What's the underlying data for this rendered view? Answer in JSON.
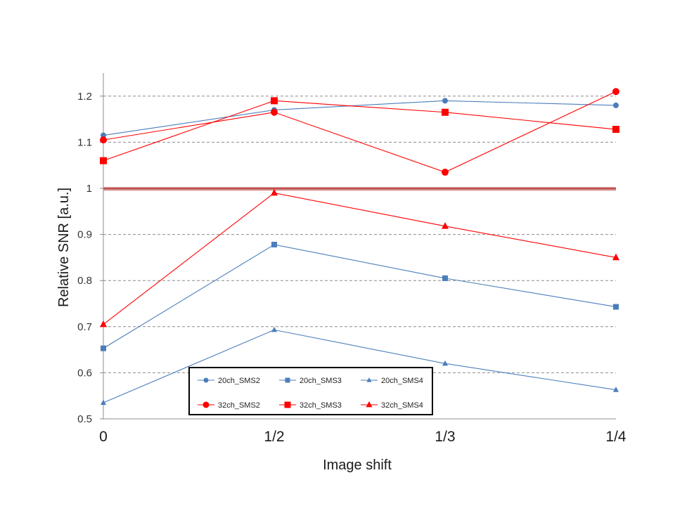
{
  "chart_data": {
    "type": "line",
    "title": "",
    "xlabel": "Image shift",
    "ylabel": "Relative SNR [a.u.]",
    "categories": [
      "0",
      "1/2",
      "1/3",
      "1/4"
    ],
    "ylim": [
      0.5,
      1.25
    ],
    "yticks": [
      {
        "value": 0.5,
        "label": "0.5"
      },
      {
        "value": 0.6,
        "label": "0.6"
      },
      {
        "value": 0.7,
        "label": "0.7"
      },
      {
        "value": 0.8,
        "label": "0.8"
      },
      {
        "value": 0.9,
        "label": "0.9"
      },
      {
        "value": 1.0,
        "label": "1"
      },
      {
        "value": 1.1,
        "label": "1.1"
      },
      {
        "value": 1.2,
        "label": "1.2"
      }
    ],
    "grid": "horizontal dashed",
    "reference_line": {
      "value": 1.0,
      "color": "#c0504d"
    },
    "legend_position": "bottom-center",
    "series": [
      {
        "name": "20ch_SMS2",
        "color": "#4a7ebb",
        "marker": "circle",
        "values": [
          1.115,
          1.17,
          1.19,
          1.18
        ]
      },
      {
        "name": "20ch_SMS3",
        "color": "#4a7ebb",
        "marker": "square",
        "values": [
          0.653,
          0.878,
          0.805,
          0.743
        ]
      },
      {
        "name": "20ch_SMS4",
        "color": "#4a7ebb",
        "marker": "triangle",
        "values": [
          0.535,
          0.693,
          0.62,
          0.563
        ]
      },
      {
        "name": "32ch_SMS2",
        "color": "#ff0000",
        "marker": "circle",
        "values": [
          1.105,
          1.165,
          1.035,
          1.21
        ]
      },
      {
        "name": "32ch_SMS3",
        "color": "#ff0000",
        "marker": "square",
        "values": [
          1.06,
          1.19,
          1.165,
          1.128
        ]
      },
      {
        "name": "32ch_SMS4",
        "color": "#ff0000",
        "marker": "triangle",
        "values": [
          0.705,
          0.99,
          0.918,
          0.85
        ]
      }
    ]
  }
}
